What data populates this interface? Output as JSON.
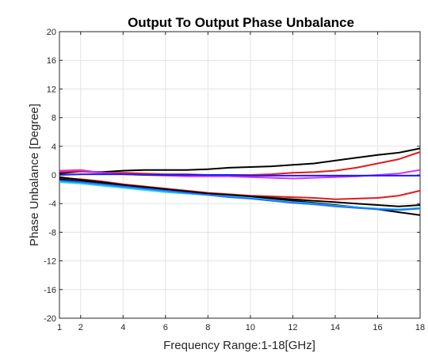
{
  "chart_data": {
    "type": "line",
    "title": "Output To Output Phase Unbalance",
    "xlabel": "Frequency Range:1-18[GHz]",
    "ylabel": "Phase Unbalance [Degree]",
    "xlim": [
      1,
      18
    ],
    "ylim": [
      -20,
      20
    ],
    "x_ticks": [
      1,
      2,
      4,
      6,
      8,
      10,
      12,
      14,
      16,
      18
    ],
    "y_ticks": [
      -20,
      -16,
      -12,
      -8,
      -4,
      0,
      4,
      8,
      12,
      16,
      20
    ],
    "grid": true,
    "legend": "none",
    "series": [
      {
        "color": "#000000",
        "x": [
          1,
          2,
          3,
          4,
          5,
          6,
          7,
          8,
          9,
          10,
          11,
          12,
          13,
          14,
          15,
          16,
          17,
          18
        ],
        "y": [
          0.2,
          0.5,
          0.4,
          0.6,
          0.7,
          0.7,
          0.7,
          0.8,
          1.0,
          1.1,
          1.2,
          1.4,
          1.6,
          2.0,
          2.4,
          2.8,
          3.1,
          3.7
        ]
      },
      {
        "color": "#e31a1c",
        "x": [
          1,
          2,
          3,
          4,
          5,
          6,
          7,
          8,
          9,
          10,
          11,
          12,
          13,
          14,
          15,
          16,
          17,
          18
        ],
        "y": [
          0.4,
          0.5,
          0.3,
          0.3,
          0.2,
          0.1,
          0.1,
          0.0,
          0.0,
          0.0,
          0.1,
          0.3,
          0.4,
          0.6,
          1.0,
          1.6,
          2.2,
          3.2
        ]
      },
      {
        "color": "#cc33ff",
        "x": [
          1,
          2,
          3,
          4,
          5,
          6,
          7,
          8,
          9,
          10,
          11,
          12,
          13,
          14,
          15,
          16,
          17,
          18
        ],
        "y": [
          0.6,
          0.7,
          0.3,
          0.1,
          0.0,
          -0.1,
          -0.2,
          -0.2,
          -0.2,
          -0.3,
          -0.4,
          -0.5,
          -0.4,
          -0.3,
          -0.2,
          0.0,
          0.2,
          0.7
        ]
      },
      {
        "color": "#1a1aff",
        "x": [
          1,
          2,
          3,
          4,
          5,
          6,
          7,
          8,
          9,
          10,
          11,
          12,
          13,
          14,
          15,
          16,
          17,
          18
        ],
        "y": [
          0.0,
          0.1,
          0.1,
          0.1,
          0.0,
          0.0,
          0.0,
          0.0,
          0.0,
          -0.1,
          -0.1,
          -0.1,
          -0.1,
          -0.1,
          -0.1,
          -0.1,
          -0.1,
          -0.1
        ]
      },
      {
        "color": "#e31a1c",
        "x": [
          1,
          2,
          3,
          4,
          5,
          6,
          7,
          8,
          9,
          10,
          11,
          12,
          13,
          14,
          15,
          16,
          17,
          18
        ],
        "y": [
          -0.4,
          -0.6,
          -0.9,
          -1.3,
          -1.6,
          -1.9,
          -2.2,
          -2.5,
          -2.7,
          -2.9,
          -3.0,
          -3.1,
          -3.2,
          -3.4,
          -3.3,
          -3.2,
          -2.9,
          -2.2
        ]
      },
      {
        "color": "#000000",
        "x": [
          1,
          2,
          3,
          4,
          5,
          6,
          7,
          8,
          9,
          10,
          11,
          12,
          13,
          14,
          15,
          16,
          17,
          18
        ],
        "y": [
          -0.6,
          -0.9,
          -1.2,
          -1.5,
          -1.8,
          -2.0,
          -2.3,
          -2.6,
          -2.8,
          -3.0,
          -3.2,
          -3.4,
          -3.6,
          -3.8,
          -4.0,
          -4.2,
          -4.4,
          -4.2
        ]
      },
      {
        "color": "#000000",
        "x": [
          1,
          2,
          3,
          4,
          5,
          6,
          7,
          8,
          9,
          10,
          11,
          12,
          13,
          14,
          15,
          16,
          17,
          18
        ],
        "y": [
          -0.3,
          -0.7,
          -1.0,
          -1.4,
          -1.7,
          -2.0,
          -2.4,
          -2.7,
          -2.9,
          -3.1,
          -3.3,
          -3.6,
          -3.9,
          -4.2,
          -4.5,
          -4.8,
          -5.2,
          -5.6
        ]
      },
      {
        "color": "#22d3ee",
        "x": [
          1,
          2,
          3,
          4,
          5,
          6,
          7,
          8,
          9,
          10,
          11,
          12,
          13,
          14,
          15,
          16,
          17,
          18
        ],
        "y": [
          -1.0,
          -1.2,
          -1.5,
          -1.8,
          -2.1,
          -2.4,
          -2.6,
          -2.8,
          -3.0,
          -3.2,
          -3.5,
          -3.8,
          -4.0,
          -4.3,
          -4.5,
          -4.7,
          -4.8,
          -4.6
        ]
      },
      {
        "color": "#1f6fff",
        "x": [
          1,
          2,
          3,
          4,
          5,
          6,
          7,
          8,
          9,
          10,
          11,
          12,
          13,
          14,
          15,
          16,
          17,
          18
        ],
        "y": [
          -0.8,
          -1.0,
          -1.3,
          -1.6,
          -1.9,
          -2.2,
          -2.5,
          -2.8,
          -3.1,
          -3.3,
          -3.6,
          -3.9,
          -4.1,
          -4.4,
          -4.6,
          -4.8,
          -4.9,
          -4.7
        ]
      }
    ]
  }
}
